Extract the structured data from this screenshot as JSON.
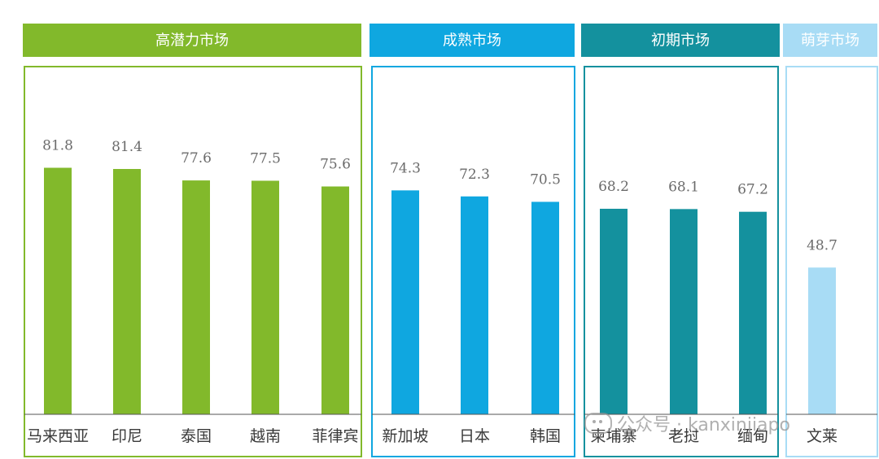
{
  "chart_data": {
    "type": "bar",
    "ylim": [
      0,
      100
    ],
    "grid": false,
    "groups": [
      {
        "name": "高潜力市场",
        "color": "#82b92b",
        "categories": [
          "马来西亚",
          "印尼",
          "泰国",
          "越南",
          "菲律宾"
        ],
        "values": [
          81.8,
          81.4,
          77.6,
          77.5,
          75.6
        ]
      },
      {
        "name": "成熟市场",
        "color": "#0fa7e0",
        "categories": [
          "新加坡",
          "日本",
          "韩国"
        ],
        "values": [
          74.3,
          72.3,
          70.5
        ]
      },
      {
        "name": "初期市场",
        "color": "#14919e",
        "categories": [
          "柬埔寨",
          "老挝",
          "缅甸"
        ],
        "values": [
          68.2,
          68.1,
          67.2
        ]
      },
      {
        "name": "萌芽市场",
        "color": "#a8dcf5",
        "categories": [
          "文莱"
        ],
        "values": [
          48.7
        ]
      }
    ]
  },
  "watermark": {
    "icon": "wechat-icon",
    "text": "公众号 · kanxinjiapo"
  }
}
